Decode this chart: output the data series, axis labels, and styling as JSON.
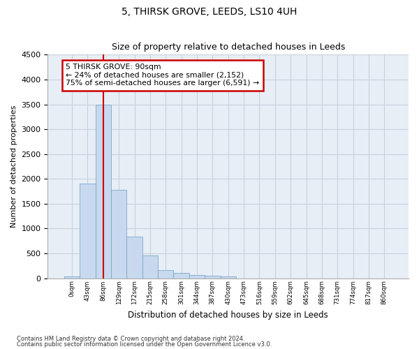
{
  "title": "5, THIRSK GROVE, LEEDS, LS10 4UH",
  "subtitle": "Size of property relative to detached houses in Leeds",
  "xlabel": "Distribution of detached houses by size in Leeds",
  "ylabel": "Number of detached properties",
  "footnote1": "Contains HM Land Registry data © Crown copyright and database right 2024.",
  "footnote2": "Contains public sector information licensed under the Open Government Licence v3.0.",
  "bin_labels": [
    "0sqm",
    "43sqm",
    "86sqm",
    "129sqm",
    "172sqm",
    "215sqm",
    "258sqm",
    "301sqm",
    "344sqm",
    "387sqm",
    "430sqm",
    "473sqm",
    "516sqm",
    "559sqm",
    "602sqm",
    "645sqm",
    "688sqm",
    "731sqm",
    "774sqm",
    "817sqm",
    "860sqm"
  ],
  "bar_values": [
    40,
    1900,
    3500,
    1780,
    840,
    460,
    160,
    100,
    70,
    55,
    40,
    0,
    0,
    0,
    0,
    0,
    0,
    0,
    0,
    0,
    0
  ],
  "bar_color": "#c8d8ee",
  "bar_edge_color": "#7aa8cc",
  "property_bin_index": 2,
  "vline_color": "#cc0000",
  "annotation_line1": "5 THIRSK GROVE: 90sqm",
  "annotation_line2": "← 24% of detached houses are smaller (2,152)",
  "annotation_line3": "75% of semi-detached houses are larger (6,591) →",
  "annotation_box_edgecolor": "#cc0000",
  "ylim": [
    0,
    4500
  ],
  "yticks": [
    0,
    500,
    1000,
    1500,
    2000,
    2500,
    3000,
    3500,
    4000,
    4500
  ],
  "grid_color": "#c8d0dc",
  "axes_bg_color": "#e8eef6",
  "background_color": "#ffffff",
  "title_fontsize": 10,
  "subtitle_fontsize": 9
}
